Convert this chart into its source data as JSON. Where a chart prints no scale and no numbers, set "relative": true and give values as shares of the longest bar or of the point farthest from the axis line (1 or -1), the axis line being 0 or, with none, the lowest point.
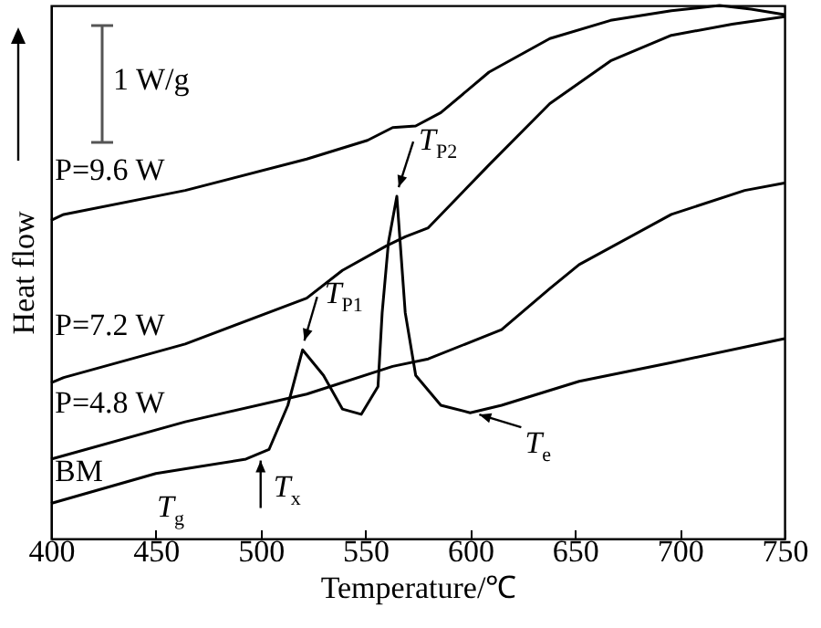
{
  "chart_data": {
    "type": "line",
    "relative": true,
    "xlabel": "Temperature/℃",
    "ylabel": "Heat flow",
    "xlim": [
      400,
      750
    ],
    "xticks": [
      400,
      450,
      500,
      550,
      600,
      650,
      700,
      750
    ],
    "grid": false,
    "legend": false,
    "marker": "none",
    "line_style": "solid",
    "series": [
      {
        "name": "P=9.6 W",
        "color": "#000000",
        "x": [
          400,
          406,
          464,
          522,
          551,
          563,
          574,
          586,
          609,
          638,
          667,
          696,
          719,
          734,
          750
        ],
        "values": [
          0.597,
          0.608,
          0.653,
          0.712,
          0.747,
          0.771,
          0.774,
          0.799,
          0.875,
          0.938,
          0.972,
          0.99,
          1.0,
          0.993,
          0.983
        ]
      },
      {
        "name": "P=7.2 W",
        "color": "#000000",
        "x": [
          400,
          406,
          464,
          522,
          539,
          560,
          569,
          580,
          609,
          638,
          667,
          696,
          725,
          750
        ],
        "values": [
          0.292,
          0.302,
          0.365,
          0.451,
          0.503,
          0.549,
          0.566,
          0.583,
          0.701,
          0.816,
          0.896,
          0.944,
          0.965,
          0.979
        ]
      },
      {
        "name": "P=4.8 W",
        "color": "#000000",
        "x": [
          400,
          464,
          522,
          563,
          580,
          615,
          638,
          652,
          696,
          731,
          750
        ],
        "values": [
          0.149,
          0.219,
          0.271,
          0.323,
          0.337,
          0.392,
          0.469,
          0.514,
          0.608,
          0.653,
          0.667
        ]
      },
      {
        "name": "BM",
        "color": "#000000",
        "x": [
          400,
          450,
          493,
          504,
          513,
          520,
          530,
          539,
          548,
          556,
          558,
          561,
          565,
          569,
          574,
          586,
          600,
          615,
          652,
          696,
          750
        ],
        "values": [
          0.066,
          0.122,
          0.149,
          0.167,
          0.25,
          0.354,
          0.306,
          0.243,
          0.233,
          0.285,
          0.424,
          0.556,
          0.642,
          0.424,
          0.306,
          0.25,
          0.236,
          0.25,
          0.295,
          0.33,
          0.375
        ]
      }
    ],
    "annotations": [
      "1 W/g",
      {
        "text": "T$_{P2}$",
        "x": 565,
        "y": 0.642
      },
      {
        "text": "T$_{P1}$",
        "x": 520,
        "y": 0.354
      },
      {
        "text": "T$_{e}$",
        "x": 600,
        "y": 0.236
      },
      {
        "text": "T$_{x}$",
        "x": 500,
        "y": 0.16
      },
      "T$_{g}$"
    ]
  }
}
